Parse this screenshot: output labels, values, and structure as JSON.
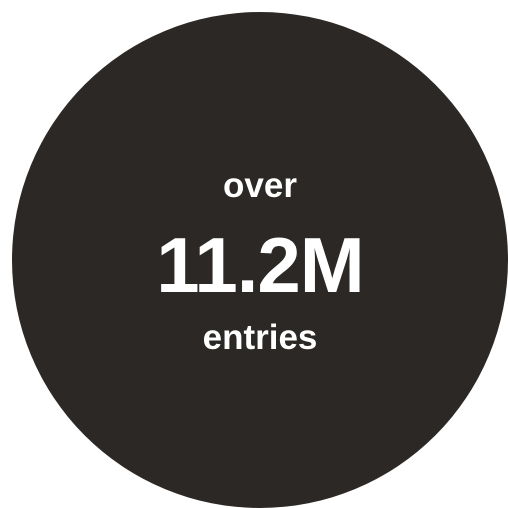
{
  "badge": {
    "prefix": "over",
    "figure": "11.2M",
    "suffix": "entries",
    "colors": {
      "circle": "#2b2825",
      "text": "#ffffff",
      "background": "#ffffff"
    }
  }
}
